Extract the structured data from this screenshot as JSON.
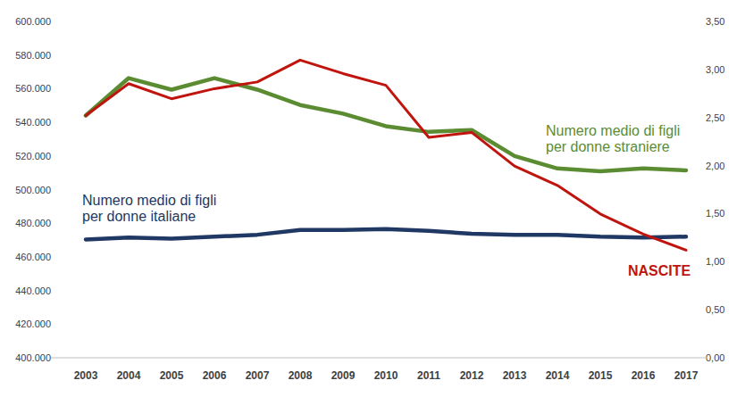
{
  "chart_data": {
    "type": "line",
    "categories": [
      "2003",
      "2004",
      "2005",
      "2006",
      "2007",
      "2008",
      "2009",
      "2010",
      "2011",
      "2012",
      "2013",
      "2014",
      "2015",
      "2016",
      "2017"
    ],
    "series": [
      {
        "name": "NASCITE",
        "color": "#c0150f",
        "axis": "y",
        "values": [
          544000,
          563000,
          554000,
          560000,
          564000,
          577000,
          569000,
          562000,
          531000,
          534000,
          514000,
          502500,
          485500,
          473500,
          464000
        ]
      },
      {
        "name": "Numero medio di figli per donne straniere",
        "color": "#5b8c32",
        "axis": "y2",
        "values": [
          2.52,
          2.91,
          2.79,
          2.91,
          2.79,
          2.63,
          2.54,
          2.41,
          2.35,
          2.37,
          2.1,
          1.97,
          1.94,
          1.97,
          1.95
        ]
      },
      {
        "name": "Numero medio di figli per donne italiane",
        "color": "#203864",
        "axis": "y2",
        "values": [
          1.23,
          1.25,
          1.24,
          1.26,
          1.28,
          1.33,
          1.33,
          1.34,
          1.32,
          1.29,
          1.28,
          1.28,
          1.26,
          1.25,
          1.26
        ]
      }
    ],
    "ylim": [
      400000,
      600000
    ],
    "yticks": [
      {
        "value": 400000,
        "label": "400.000"
      },
      {
        "value": 420000,
        "label": "420.000"
      },
      {
        "value": 440000,
        "label": "440.000"
      },
      {
        "value": 460000,
        "label": "460.000"
      },
      {
        "value": 480000,
        "label": "480.000"
      },
      {
        "value": 500000,
        "label": "500.000"
      },
      {
        "value": 520000,
        "label": "520.000"
      },
      {
        "value": 540000,
        "label": "540.000"
      },
      {
        "value": 560000,
        "label": "560.000"
      },
      {
        "value": 580000,
        "label": "580.000"
      },
      {
        "value": 600000,
        "label": "600.000"
      }
    ],
    "y2lim": [
      0,
      3.5
    ],
    "y2ticks": [
      {
        "value": 0,
        "label": "0,00"
      },
      {
        "value": 0.5,
        "label": "0,50"
      },
      {
        "value": 1,
        "label": "1,00"
      },
      {
        "value": 1.5,
        "label": "1,50"
      },
      {
        "value": 2,
        "label": "2,00"
      },
      {
        "value": 2.5,
        "label": "2,50"
      },
      {
        "value": 3,
        "label": "3,00"
      },
      {
        "value": 3.5,
        "label": "3,50"
      }
    ],
    "grid": false
  }
}
